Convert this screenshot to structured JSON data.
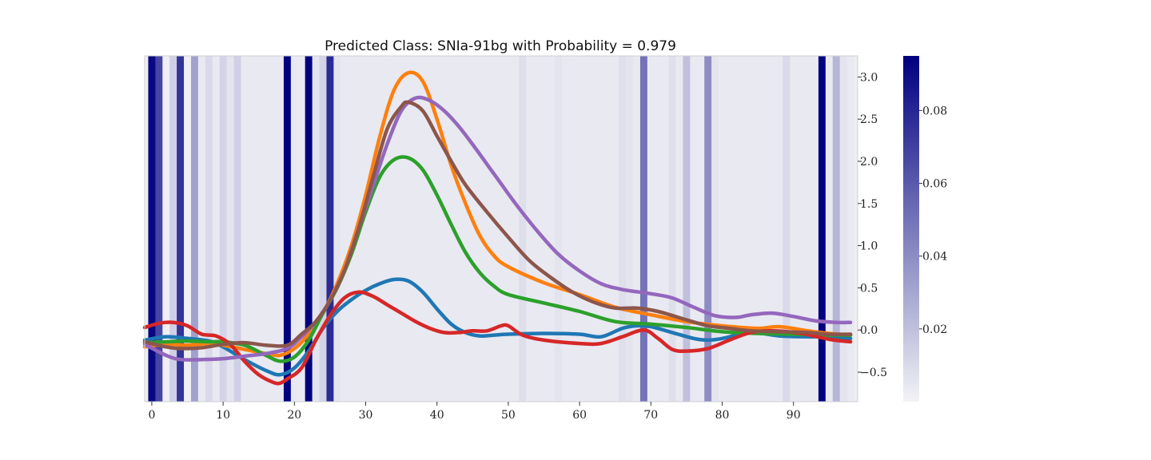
{
  "chart_data": {
    "type": "line",
    "title": "Predicted Class: SNIa-91bg with Probability = 0.979",
    "xlim": [
      -1,
      99
    ],
    "ylim": [
      -0.85,
      3.25
    ],
    "x_ticks": [
      0,
      10,
      20,
      30,
      40,
      50,
      60,
      70,
      80,
      90
    ],
    "y_ticks": [
      -0.5,
      0.0,
      0.5,
      1.0,
      1.5,
      2.0,
      2.5,
      3.0
    ],
    "y_tick_labels": [
      "−0.5",
      "0.0",
      "0.5",
      "1.0",
      "1.5",
      "2.0",
      "2.5",
      "3.0"
    ],
    "background": "#eeeef1",
    "attention": {
      "colormap": [
        "#f3f3f6",
        "#000080"
      ],
      "vmin": 0.0,
      "vmax": 0.095,
      "colorbar_ticks": [
        0.02,
        0.04,
        0.06,
        0.08
      ],
      "colorbar_tick_labels": [
        "0.02",
        "0.04",
        "0.06",
        "0.08"
      ],
      "values": [
        0.092,
        0.068,
        0.002,
        0.014,
        0.075,
        0.002,
        0.032,
        0.004,
        0.01,
        0.004,
        0.012,
        0.006,
        0.014,
        0.004,
        0.004,
        0.004,
        0.004,
        0.004,
        0.004,
        0.095,
        0.004,
        0.004,
        0.095,
        0.006,
        0.012,
        0.078,
        0.006,
        0.004,
        0.004,
        0.004,
        0.004,
        0.004,
        0.004,
        0.004,
        0.004,
        0.004,
        0.004,
        0.004,
        0.004,
        0.004,
        0.004,
        0.004,
        0.004,
        0.004,
        0.004,
        0.004,
        0.004,
        0.004,
        0.004,
        0.004,
        0.004,
        0.004,
        0.008,
        0.004,
        0.004,
        0.004,
        0.004,
        0.006,
        0.004,
        0.004,
        0.004,
        0.004,
        0.004,
        0.004,
        0.004,
        0.004,
        0.008,
        0.006,
        0.004,
        0.05,
        0.004,
        0.004,
        0.004,
        0.008,
        0.004,
        0.02,
        0.004,
        0.004,
        0.04,
        0.006,
        0.004,
        0.004,
        0.004,
        0.004,
        0.004,
        0.004,
        0.004,
        0.004,
        0.004,
        0.01,
        0.004,
        0.004,
        0.004,
        0.004,
        0.094,
        0.004,
        0.024,
        0.006,
        0.004
      ]
    },
    "series": [
      {
        "color": "#1f77b4",
        "points": [
          [
            -1,
            -0.12
          ],
          [
            2,
            -0.08
          ],
          [
            5,
            -0.1
          ],
          [
            8,
            -0.13
          ],
          [
            10,
            -0.2
          ],
          [
            13,
            -0.35
          ],
          [
            16,
            -0.48
          ],
          [
            18,
            -0.53
          ],
          [
            20,
            -0.45
          ],
          [
            22,
            -0.25
          ],
          [
            24,
            0.02
          ],
          [
            26,
            0.22
          ],
          [
            28,
            0.36
          ],
          [
            30,
            0.47
          ],
          [
            32,
            0.55
          ],
          [
            34,
            0.6
          ],
          [
            36,
            0.58
          ],
          [
            38,
            0.45
          ],
          [
            40,
            0.25
          ],
          [
            42,
            0.07
          ],
          [
            44,
            -0.03
          ],
          [
            46,
            -0.07
          ],
          [
            48,
            -0.06
          ],
          [
            50,
            -0.05
          ],
          [
            55,
            -0.04
          ],
          [
            60,
            -0.05
          ],
          [
            63,
            -0.08
          ],
          [
            66,
            0.02
          ],
          [
            68,
            0.05
          ],
          [
            70,
            0.04
          ],
          [
            73,
            -0.03
          ],
          [
            76,
            -0.1
          ],
          [
            78,
            -0.12
          ],
          [
            80,
            -0.1
          ],
          [
            84,
            -0.03
          ],
          [
            88,
            -0.07
          ],
          [
            92,
            -0.08
          ],
          [
            95,
            -0.08
          ],
          [
            98,
            -0.1
          ]
        ]
      },
      {
        "color": "#ff7f0e",
        "points": [
          [
            -1,
            -0.2
          ],
          [
            2,
            -0.17
          ],
          [
            5,
            -0.18
          ],
          [
            8,
            -0.16
          ],
          [
            10,
            -0.18
          ],
          [
            13,
            -0.23
          ],
          [
            16,
            -0.28
          ],
          [
            18,
            -0.3
          ],
          [
            20,
            -0.22
          ],
          [
            22,
            -0.05
          ],
          [
            24,
            0.2
          ],
          [
            26,
            0.55
          ],
          [
            28,
            1.0
          ],
          [
            30,
            1.6
          ],
          [
            32,
            2.3
          ],
          [
            34,
            2.85
          ],
          [
            36,
            3.05
          ],
          [
            38,
            2.95
          ],
          [
            40,
            2.5
          ],
          [
            42,
            1.95
          ],
          [
            44,
            1.5
          ],
          [
            46,
            1.12
          ],
          [
            48,
            0.88
          ],
          [
            50,
            0.75
          ],
          [
            55,
            0.56
          ],
          [
            60,
            0.42
          ],
          [
            65,
            0.27
          ],
          [
            70,
            0.18
          ],
          [
            75,
            0.1
          ],
          [
            80,
            0.05
          ],
          [
            85,
            0.02
          ],
          [
            88,
            0.04
          ],
          [
            92,
            -0.01
          ],
          [
            95,
            -0.04
          ],
          [
            98,
            -0.06
          ]
        ]
      },
      {
        "color": "#2ca02c",
        "points": [
          [
            -1,
            -0.15
          ],
          [
            2,
            -0.14
          ],
          [
            5,
            -0.13
          ],
          [
            8,
            -0.14
          ],
          [
            10,
            -0.14
          ],
          [
            13,
            -0.18
          ],
          [
            16,
            -0.3
          ],
          [
            18,
            -0.37
          ],
          [
            20,
            -0.32
          ],
          [
            22,
            -0.12
          ],
          [
            24,
            0.2
          ],
          [
            26,
            0.5
          ],
          [
            28,
            0.9
          ],
          [
            30,
            1.4
          ],
          [
            32,
            1.82
          ],
          [
            34,
            2.02
          ],
          [
            36,
            2.04
          ],
          [
            38,
            1.9
          ],
          [
            40,
            1.6
          ],
          [
            42,
            1.25
          ],
          [
            44,
            0.92
          ],
          [
            46,
            0.68
          ],
          [
            48,
            0.52
          ],
          [
            50,
            0.42
          ],
          [
            55,
            0.32
          ],
          [
            60,
            0.22
          ],
          [
            65,
            0.1
          ],
          [
            70,
            0.07
          ],
          [
            75,
            0.03
          ],
          [
            80,
            -0.02
          ],
          [
            85,
            -0.04
          ],
          [
            90,
            -0.05
          ],
          [
            95,
            -0.06
          ],
          [
            98,
            -0.06
          ]
        ]
      },
      {
        "color": "#d62728",
        "points": [
          [
            -1,
            0.03
          ],
          [
            1,
            0.08
          ],
          [
            3,
            0.09
          ],
          [
            5,
            0.05
          ],
          [
            7,
            -0.05
          ],
          [
            9,
            -0.07
          ],
          [
            11,
            -0.17
          ],
          [
            13,
            -0.37
          ],
          [
            15,
            -0.53
          ],
          [
            17,
            -0.62
          ],
          [
            18,
            -0.63
          ],
          [
            19,
            -0.58
          ],
          [
            21,
            -0.45
          ],
          [
            23,
            -0.12
          ],
          [
            25,
            0.17
          ],
          [
            27,
            0.38
          ],
          [
            29,
            0.45
          ],
          [
            31,
            0.4
          ],
          [
            33,
            0.3
          ],
          [
            35,
            0.2
          ],
          [
            37,
            0.1
          ],
          [
            39,
            0.02
          ],
          [
            41,
            -0.03
          ],
          [
            43,
            -0.03
          ],
          [
            45,
            -0.01
          ],
          [
            47,
            -0.01
          ],
          [
            49,
            0.05
          ],
          [
            50,
            0.05
          ],
          [
            52,
            -0.06
          ],
          [
            55,
            -0.12
          ],
          [
            60,
            -0.16
          ],
          [
            63,
            -0.16
          ],
          [
            66,
            -0.08
          ],
          [
            69,
            0.0
          ],
          [
            71,
            -0.1
          ],
          [
            73,
            -0.23
          ],
          [
            75,
            -0.25
          ],
          [
            78,
            -0.22
          ],
          [
            81,
            -0.12
          ],
          [
            84,
            -0.03
          ],
          [
            87,
            -0.01
          ],
          [
            91,
            -0.04
          ],
          [
            95,
            -0.11
          ],
          [
            98,
            -0.14
          ]
        ]
      },
      {
        "color": "#9467bd",
        "points": [
          [
            -1,
            -0.17
          ],
          [
            2,
            -0.3
          ],
          [
            4,
            -0.35
          ],
          [
            7,
            -0.35
          ],
          [
            10,
            -0.34
          ],
          [
            13,
            -0.31
          ],
          [
            16,
            -0.28
          ],
          [
            19,
            -0.22
          ],
          [
            21,
            -0.08
          ],
          [
            23,
            0.1
          ],
          [
            25,
            0.35
          ],
          [
            27,
            0.7
          ],
          [
            29,
            1.2
          ],
          [
            31,
            1.7
          ],
          [
            33,
            2.2
          ],
          [
            35,
            2.6
          ],
          [
            37,
            2.75
          ],
          [
            39,
            2.72
          ],
          [
            41,
            2.6
          ],
          [
            43,
            2.42
          ],
          [
            45,
            2.2
          ],
          [
            48,
            1.85
          ],
          [
            51,
            1.5
          ],
          [
            54,
            1.18
          ],
          [
            57,
            0.9
          ],
          [
            60,
            0.7
          ],
          [
            63,
            0.55
          ],
          [
            66,
            0.48
          ],
          [
            70,
            0.43
          ],
          [
            73,
            0.38
          ],
          [
            76,
            0.27
          ],
          [
            79,
            0.17
          ],
          [
            82,
            0.15
          ],
          [
            84,
            0.18
          ],
          [
            87,
            0.2
          ],
          [
            90,
            0.16
          ],
          [
            93,
            0.11
          ],
          [
            96,
            0.09
          ],
          [
            98,
            0.09
          ]
        ]
      },
      {
        "color": "#8c564b",
        "points": [
          [
            -1,
            -0.14
          ],
          [
            2,
            -0.2
          ],
          [
            4,
            -0.22
          ],
          [
            7,
            -0.21
          ],
          [
            10,
            -0.17
          ],
          [
            13,
            -0.15
          ],
          [
            16,
            -0.18
          ],
          [
            19,
            -0.18
          ],
          [
            21,
            -0.05
          ],
          [
            23,
            0.1
          ],
          [
            25,
            0.35
          ],
          [
            27,
            0.7
          ],
          [
            29,
            1.2
          ],
          [
            31,
            1.8
          ],
          [
            33,
            2.38
          ],
          [
            35,
            2.65
          ],
          [
            36,
            2.7
          ],
          [
            38,
            2.6
          ],
          [
            40,
            2.3
          ],
          [
            42,
            2.0
          ],
          [
            44,
            1.72
          ],
          [
            47,
            1.4
          ],
          [
            50,
            1.1
          ],
          [
            53,
            0.82
          ],
          [
            56,
            0.62
          ],
          [
            59,
            0.45
          ],
          [
            62,
            0.33
          ],
          [
            65,
            0.26
          ],
          [
            68,
            0.26
          ],
          [
            71,
            0.22
          ],
          [
            75,
            0.12
          ],
          [
            78,
            0.05
          ],
          [
            81,
            0.02
          ],
          [
            84,
            -0.01
          ],
          [
            88,
            -0.02
          ],
          [
            92,
            -0.03
          ],
          [
            95,
            -0.05
          ],
          [
            98,
            -0.05
          ]
        ]
      }
    ]
  }
}
